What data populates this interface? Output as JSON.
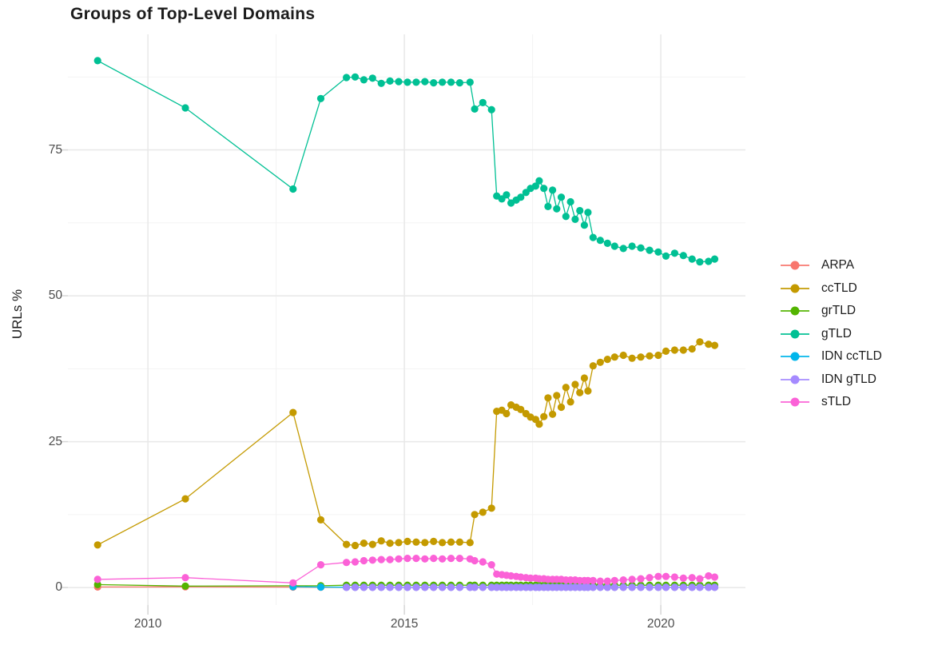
{
  "chart_data": {
    "type": "line",
    "title": "Groups of Top-Level Domains",
    "xlabel": "",
    "ylabel": "URLs %",
    "grid": "on",
    "legend_position": "right",
    "x_axis": {
      "ticks": [
        2010,
        2015,
        2020
      ],
      "tick_labels": [
        "2010",
        "2015",
        "2020"
      ],
      "minor_ticks": [
        2012.5,
        2017.5
      ],
      "range": [
        2008.44,
        2021.65
      ]
    },
    "y_axis": {
      "ticks": [
        0,
        25,
        50,
        75
      ],
      "tick_labels": [
        "0",
        "25",
        "50",
        "75"
      ],
      "minor_ticks": [
        12.5,
        37.5,
        62.5,
        87.5
      ],
      "range": [
        -3.0,
        94.8
      ]
    },
    "x": [
      2009.02,
      2010.73,
      2012.83,
      2013.37,
      2013.87,
      2014.04,
      2014.21,
      2014.38,
      2014.55,
      2014.72,
      2014.89,
      2015.06,
      2015.23,
      2015.4,
      2015.57,
      2015.74,
      2015.91,
      2016.08,
      2016.28,
      2016.37,
      2016.53,
      2016.7,
      2016.8,
      2016.9,
      2016.99,
      2017.08,
      2017.18,
      2017.27,
      2017.37,
      2017.46,
      2017.56,
      2017.63,
      2017.72,
      2017.8,
      2017.89,
      2017.97,
      2018.06,
      2018.15,
      2018.24,
      2018.33,
      2018.42,
      2018.51,
      2018.58,
      2018.68,
      2018.82,
      2018.96,
      2019.1,
      2019.27,
      2019.44,
      2019.61,
      2019.78,
      2019.95,
      2020.1,
      2020.27,
      2020.44,
      2020.61,
      2020.76,
      2020.93,
      2021.05
    ],
    "series": [
      {
        "name": "ARPA",
        "color": "#F8766D",
        "values": [
          0.1,
          0.12,
          0.08,
          0.06,
          0.05,
          0.05,
          0.05,
          0.05,
          0.05,
          0.05,
          0.05,
          0.05,
          0.05,
          0.05,
          0.05,
          0.05,
          0.05,
          0.05,
          0.05,
          0.05,
          0.05,
          0.05,
          0.05,
          0.05,
          0.05,
          0.05,
          0.05,
          0.05,
          0.05,
          0.05,
          0.05,
          0.05,
          0.05,
          0.05,
          0.05,
          0.05,
          0.05,
          0.05,
          0.05,
          0.05,
          0.05,
          0.05,
          0.05,
          0.05,
          0.05,
          0.05,
          0.05,
          0.05,
          0.05,
          0.05,
          0.05,
          0.05,
          0.05,
          0.05,
          0.05,
          0.05,
          0.05,
          0.05,
          0.05
        ]
      },
      {
        "name": "ccTLD",
        "color": "#C49A00",
        "values": [
          7.3,
          15.2,
          30.0,
          11.6,
          7.4,
          7.2,
          7.6,
          7.4,
          8.0,
          7.6,
          7.7,
          7.9,
          7.8,
          7.7,
          7.9,
          7.7,
          7.8,
          7.8,
          7.7,
          12.5,
          12.9,
          13.6,
          30.2,
          30.4,
          29.8,
          31.3,
          30.9,
          30.5,
          29.8,
          29.2,
          28.8,
          28.0,
          29.3,
          32.5,
          29.7,
          32.9,
          30.9,
          34.3,
          31.8,
          34.8,
          33.4,
          35.9,
          33.7,
          38.0,
          38.6,
          39.1,
          39.5,
          39.8,
          39.3,
          39.5,
          39.7,
          39.8,
          40.5,
          40.7,
          40.7,
          40.9,
          42.1,
          41.7,
          41.5
        ]
      },
      {
        "name": "grTLD",
        "color": "#53B400",
        "values": [
          0.5,
          0.25,
          0.3,
          0.3,
          0.4,
          0.4,
          0.4,
          0.4,
          0.4,
          0.4,
          0.4,
          0.4,
          0.4,
          0.4,
          0.4,
          0.4,
          0.4,
          0.4,
          0.4,
          0.4,
          0.4,
          0.4,
          0.4,
          0.4,
          0.4,
          0.4,
          0.4,
          0.4,
          0.4,
          0.4,
          0.4,
          0.4,
          0.4,
          0.4,
          0.4,
          0.4,
          0.4,
          0.4,
          0.4,
          0.4,
          0.4,
          0.4,
          0.4,
          0.4,
          0.4,
          0.4,
          0.4,
          0.4,
          0.4,
          0.4,
          0.4,
          0.4,
          0.4,
          0.4,
          0.4,
          0.4,
          0.4,
          0.4,
          0.4
        ]
      },
      {
        "name": "gTLD",
        "color": "#00C094",
        "values": [
          90.3,
          82.2,
          68.3,
          83.8,
          87.4,
          87.5,
          87.0,
          87.3,
          86.4,
          86.8,
          86.7,
          86.6,
          86.6,
          86.7,
          86.5,
          86.6,
          86.6,
          86.5,
          86.6,
          82.0,
          83.1,
          81.9,
          67.1,
          66.6,
          67.3,
          65.9,
          66.4,
          66.9,
          67.7,
          68.4,
          68.8,
          69.7,
          68.4,
          65.3,
          68.1,
          64.9,
          66.9,
          63.6,
          66.1,
          63.1,
          64.6,
          62.1,
          64.3,
          60.0,
          59.5,
          59.0,
          58.5,
          58.1,
          58.5,
          58.2,
          57.8,
          57.5,
          56.8,
          57.3,
          56.9,
          56.3,
          55.8,
          55.9,
          56.3
        ]
      },
      {
        "name": "IDN ccTLD",
        "color": "#00B6EB",
        "values": [
          null,
          null,
          0.15,
          0.08,
          0.05,
          0.05,
          0.05,
          0.05,
          0.05,
          0.05,
          0.05,
          0.05,
          0.05,
          0.05,
          0.05,
          0.05,
          0.05,
          0.05,
          0.05,
          0.05,
          0.05,
          0.05,
          0.05,
          0.05,
          0.05,
          0.05,
          0.05,
          0.05,
          0.05,
          0.05,
          0.05,
          0.05,
          0.05,
          0.05,
          0.05,
          0.05,
          0.05,
          0.05,
          0.05,
          0.05,
          0.05,
          0.05,
          0.05,
          0.05,
          0.05,
          0.05,
          0.05,
          0.05,
          0.05,
          0.05,
          0.05,
          0.05,
          0.05,
          0.05,
          0.05,
          0.05,
          0.05,
          0.05,
          0.05
        ]
      },
      {
        "name": "IDN gTLD",
        "color": "#A58AFF",
        "values": [
          null,
          null,
          null,
          null,
          0.03,
          0.03,
          0.03,
          0.03,
          0.03,
          0.03,
          0.03,
          0.03,
          0.03,
          0.03,
          0.03,
          0.03,
          0.03,
          0.03,
          0.03,
          0.03,
          0.03,
          0.03,
          0.03,
          0.03,
          0.03,
          0.03,
          0.03,
          0.03,
          0.03,
          0.03,
          0.03,
          0.03,
          0.03,
          0.03,
          0.03,
          0.03,
          0.03,
          0.03,
          0.03,
          0.03,
          0.03,
          0.03,
          0.03,
          0.03,
          0.03,
          0.03,
          0.03,
          0.03,
          0.03,
          0.03,
          0.03,
          0.03,
          0.03,
          0.03,
          0.03,
          0.03,
          0.03,
          0.03,
          0.03
        ]
      },
      {
        "name": "sTLD",
        "color": "#FB61D7",
        "values": [
          1.4,
          1.7,
          0.8,
          3.9,
          4.3,
          4.4,
          4.6,
          4.7,
          4.8,
          4.8,
          4.9,
          5.0,
          5.0,
          4.9,
          5.0,
          4.9,
          5.0,
          5.0,
          4.9,
          4.6,
          4.4,
          3.9,
          2.3,
          2.2,
          2.1,
          2.0,
          1.9,
          1.8,
          1.7,
          1.6,
          1.6,
          1.5,
          1.5,
          1.4,
          1.4,
          1.4,
          1.4,
          1.3,
          1.3,
          1.3,
          1.2,
          1.2,
          1.2,
          1.2,
          1.1,
          1.1,
          1.2,
          1.3,
          1.4,
          1.5,
          1.7,
          1.9,
          1.9,
          1.8,
          1.6,
          1.7,
          1.5,
          2.0,
          1.8
        ]
      }
    ],
    "style": {
      "grid_major_color": "#E8E8E8",
      "grid_minor_color": "#F2F2F2",
      "tick_mark_color": "#D6D6D6",
      "tick_label_color": "#4d4d4d",
      "text_color": "#1c1c1c",
      "background": "#ffffff"
    }
  }
}
